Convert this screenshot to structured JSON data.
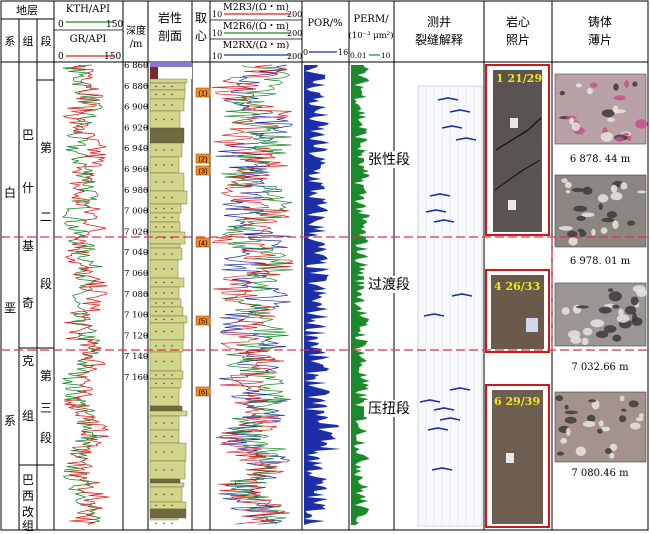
{
  "header": {
    "strata": "地层",
    "system": "系",
    "group": "组",
    "member": "段",
    "kth": "KTH/API",
    "kth_range": [
      "0",
      "150"
    ],
    "gr": "GR/API",
    "gr_range": [
      "0",
      "150"
    ],
    "depth": [
      "深度",
      "/m"
    ],
    "lithology": [
      "岩性",
      "剖面"
    ],
    "sampling": [
      "取",
      "心"
    ],
    "resistivity": [
      {
        "label": "M2R3/(Ω・m)",
        "min": "10",
        "max": "200"
      },
      {
        "label": "M2R6/(Ω・m)",
        "min": "10",
        "max": "200"
      },
      {
        "label": "M2RX/(Ω・m)",
        "min": "10",
        "max": "200"
      }
    ],
    "por": "POR/%",
    "por_range": [
      "0",
      "16"
    ],
    "perm": "PERM/",
    "perm_unit": "(10⁻³ μm²)",
    "perm_range": [
      "0.01",
      "10"
    ],
    "fracture": [
      "测井",
      "裂缝解释"
    ],
    "core": [
      "岩心",
      "照片"
    ],
    "thin": [
      "铸体",
      "薄片"
    ]
  },
  "strata_labels": {
    "system_chars": [
      "白",
      "垩",
      "系"
    ],
    "group_chars": [
      "巴",
      "什",
      "基",
      "奇",
      "克",
      "组"
    ],
    "group_bottom_chars": [
      "巴",
      "西",
      "改",
      "组"
    ],
    "member_2_chars": [
      "第",
      "二",
      "段"
    ],
    "member_3_chars": [
      "第",
      "三",
      "段"
    ]
  },
  "depth_ticks": [
    "6 860",
    "6 880",
    "6 900",
    "6 920",
    "6 940",
    "6 960",
    "6 980",
    "7 000",
    "7 020",
    "7 040",
    "7 060",
    "7 080",
    "7 100",
    "7 120",
    "7 140",
    "7 160"
  ],
  "core_samples": [
    "(1)",
    "(2)",
    "(3)",
    "(4)",
    "(5)",
    "(6)"
  ],
  "zones": [
    "张性段",
    "过渡段",
    "压扭段"
  ],
  "core_photos": [
    "1  21/29",
    "4  26/33",
    "6  29/39"
  ],
  "thin_sections": [
    "6 878. 44  m",
    "6 978. 01  m",
    "7 032.66  m",
    "7 080.46  m"
  ],
  "colors": {
    "red": "#e02020",
    "green": "#1a8a2a",
    "blue": "#1c2fa8",
    "lith": "#d2d68a",
    "orange": "#f08c28",
    "dash": "#e0304a"
  }
}
